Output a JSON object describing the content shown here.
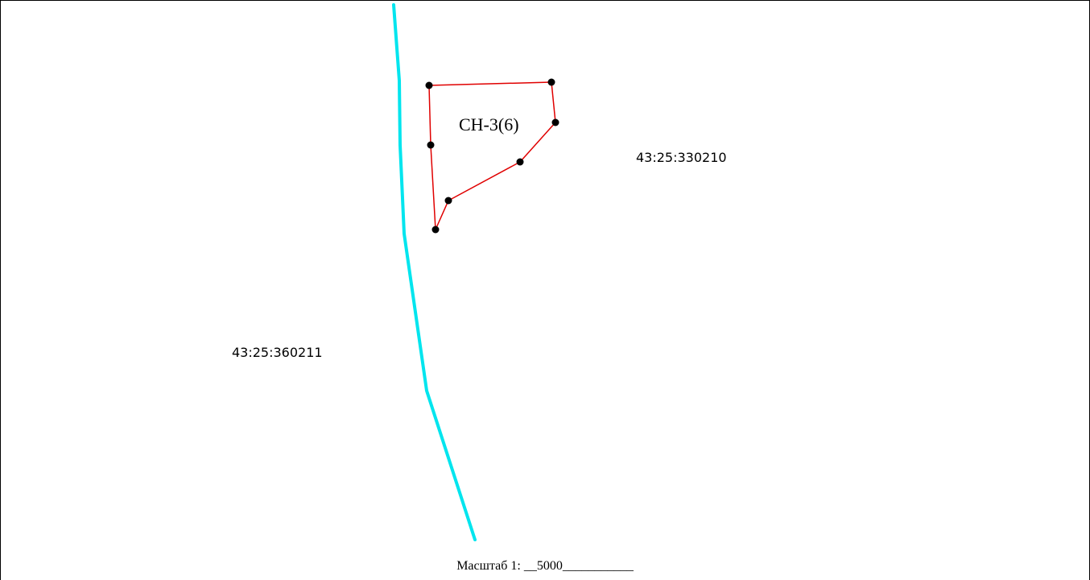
{
  "map": {
    "plot_label": "СН-3(6)",
    "parcels": [
      {
        "id": "parcel-east",
        "label": "43:25:330210"
      },
      {
        "id": "parcel-west",
        "label": "43:25:360211"
      }
    ],
    "colors": {
      "plot_boundary": "#e00000",
      "parcel_boundary": "#00e5ee",
      "vertex": "#000000"
    }
  },
  "scale": {
    "text": "Масштаб 1: __5000___________"
  }
}
